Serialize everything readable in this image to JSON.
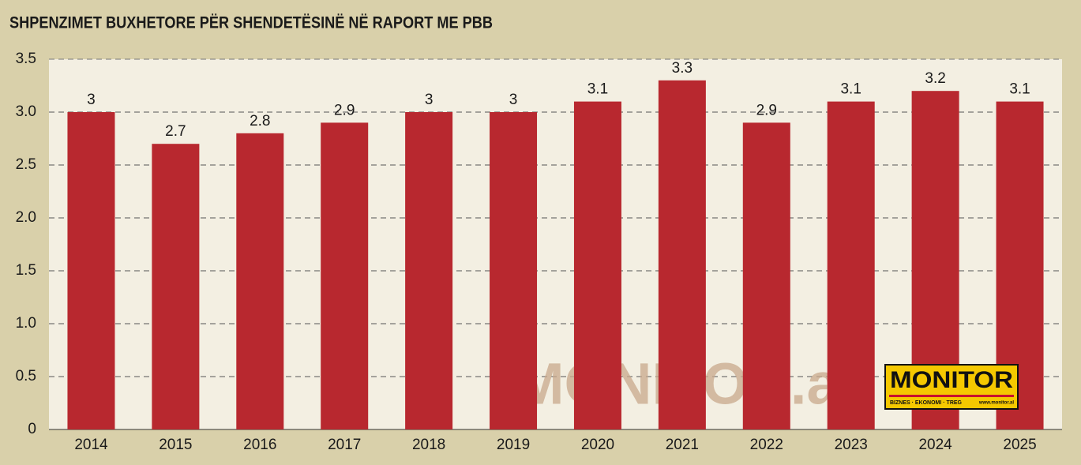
{
  "chart_data": {
    "type": "bar",
    "title": "SHPENZIMET BUXHETORE PËR SHENDETËSINË NË RAPORT ME PBB",
    "categories": [
      "2014",
      "2015",
      "2016",
      "2017",
      "2018",
      "2019",
      "2020",
      "2021",
      "2022",
      "2023",
      "2024",
      "2025"
    ],
    "values": [
      3,
      2.7,
      2.8,
      2.9,
      3,
      3,
      3.1,
      3.3,
      2.9,
      3.1,
      3.2,
      3.1
    ],
    "color": "#b8282f",
    "ylim": [
      0,
      3.5
    ],
    "yticks": [
      0,
      0.5,
      {
        "value": 1,
        "label": "1.0"
      },
      1.5,
      {
        "value": 2,
        "label": "2.0"
      },
      2.5,
      {
        "value": 3,
        "label": "3.0"
      },
      3.5
    ],
    "grid": true,
    "watermark": "MONITOR.al",
    "logo": {
      "name": "MONITOR",
      "tagline": "BIZNES · EKONOMI · TREG",
      "url": "www.monitor.al"
    }
  }
}
